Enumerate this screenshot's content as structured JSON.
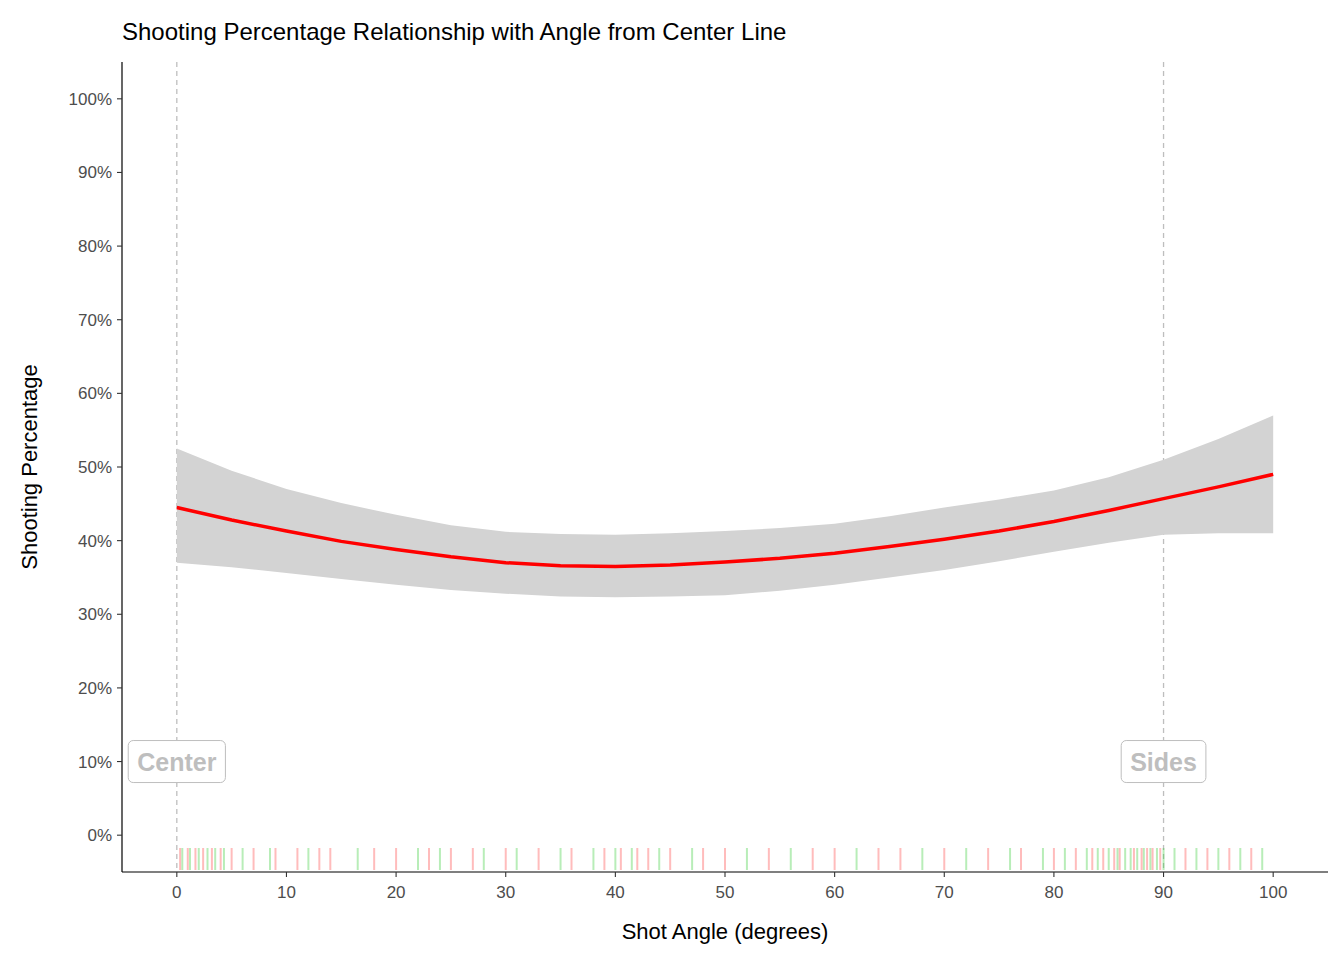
{
  "chart_data": {
    "type": "line",
    "title": "Shooting Percentage Relationship with Angle from Center Line",
    "x_label": "Shot Angle (degrees)",
    "y_label": "Shooting Percentage",
    "x": [
      0,
      5,
      10,
      15,
      20,
      25,
      30,
      35,
      40,
      45,
      50,
      55,
      60,
      65,
      70,
      75,
      80,
      85,
      90,
      95,
      100
    ],
    "series": [
      {
        "color": "#ff0000",
        "values": [
          44.5,
          42.8,
          41.3,
          39.9,
          38.8,
          37.8,
          37.0,
          36.6,
          36.5,
          36.7,
          37.1,
          37.6,
          38.3,
          39.2,
          40.2,
          41.3,
          42.6,
          44.1,
          45.7,
          47.3,
          49.0
        ],
        "lower": [
          37.0,
          36.4,
          35.6,
          34.8,
          34.0,
          33.3,
          32.8,
          32.4,
          32.3,
          32.4,
          32.6,
          33.2,
          34.0,
          35.0,
          36.0,
          37.2,
          38.5,
          39.7,
          40.8,
          41.0,
          41.0
        ],
        "upper": [
          52.5,
          49.5,
          47.0,
          45.1,
          43.5,
          42.1,
          41.2,
          40.9,
          40.8,
          41.0,
          41.3,
          41.7,
          42.3,
          43.3,
          44.5,
          45.6,
          46.8,
          48.6,
          51.0,
          53.8,
          57.0
        ]
      }
    ],
    "xlim": [
      -5,
      105
    ],
    "ylim": [
      -5,
      105
    ],
    "xticks": [
      0,
      10,
      20,
      30,
      40,
      50,
      60,
      70,
      80,
      90,
      100
    ],
    "yticks": [
      {
        "value": 0,
        "label": "0%"
      },
      {
        "value": 10,
        "label": "10%"
      },
      {
        "value": 20,
        "label": "20%"
      },
      {
        "value": 30,
        "label": "30%"
      },
      {
        "value": 40,
        "label": "40%"
      },
      {
        "value": 50,
        "label": "50%"
      },
      {
        "value": 60,
        "label": "60%"
      },
      {
        "value": 70,
        "label": "70%"
      },
      {
        "value": 80,
        "label": "80%"
      },
      {
        "value": 90,
        "label": "90%"
      },
      {
        "value": 100,
        "label": "100%"
      }
    ],
    "grid": false,
    "annotations": [
      {
        "x": 0,
        "y": 10,
        "label": "Center"
      },
      {
        "x": 90,
        "y": 10,
        "label": "Sides"
      }
    ],
    "rug": [
      {
        "color": "#33cc33",
        "x": [
          0.5,
          1.2,
          2,
          2.8,
          3.5,
          4.3,
          6,
          8.5,
          12,
          16.5,
          22,
          24,
          28,
          31,
          35,
          38,
          40,
          41.5,
          44,
          47,
          52,
          56,
          62,
          68,
          72,
          76,
          79,
          81,
          83,
          84,
          85,
          85.8,
          86.5,
          87,
          87.6,
          88.2,
          88.8,
          89.4,
          90,
          91,
          93,
          95,
          97,
          99
        ]
      },
      {
        "color": "#ff4040",
        "x": [
          0.3,
          1,
          1.7,
          2.4,
          3.2,
          4,
          5,
          7,
          9,
          11,
          13,
          14,
          18,
          20,
          23,
          25,
          27,
          30,
          33,
          36,
          39,
          40.5,
          42,
          43,
          45,
          48,
          50,
          54,
          58,
          60,
          64,
          66,
          70,
          74,
          77,
          80,
          82,
          83.5,
          84.5,
          85.5,
          86,
          87.3,
          88,
          88.5,
          89,
          89.7,
          92,
          94,
          96,
          98
        ]
      }
    ]
  }
}
